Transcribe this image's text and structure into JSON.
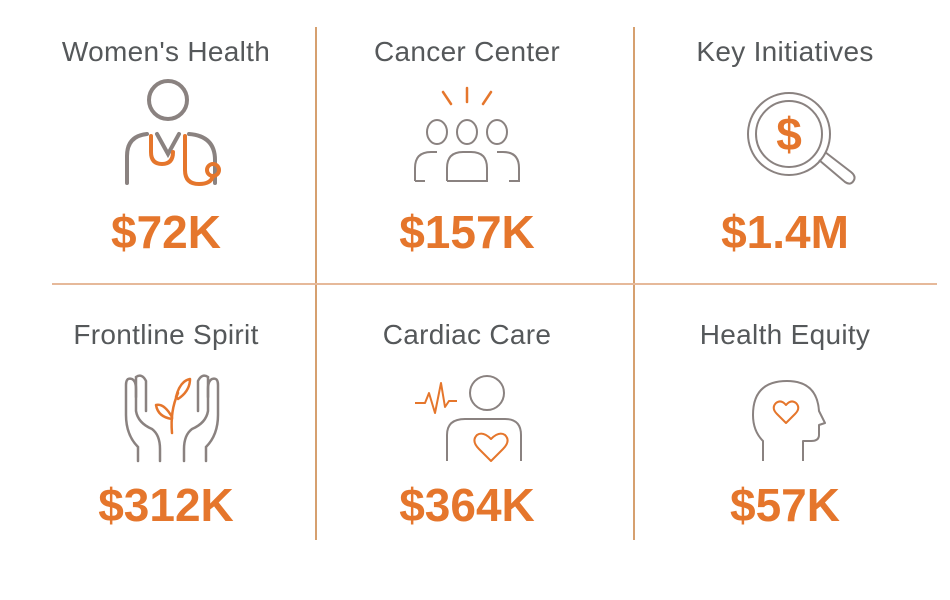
{
  "cells": [
    {
      "label": "Women's Health",
      "amount": "$72K",
      "icon": "stethoscope-person-icon"
    },
    {
      "label": "Cancer Center",
      "amount": "$157K",
      "icon": "group-people-icon"
    },
    {
      "label": "Key Initiatives",
      "amount": "$1.4M",
      "icon": "magnifier-dollar-icon"
    },
    {
      "label": "Frontline Spirit",
      "amount": "$312K",
      "icon": "hands-sprout-icon"
    },
    {
      "label": "Cardiac Care",
      "amount": "$364K",
      "icon": "person-heart-pulse-icon"
    },
    {
      "label": "Health Equity",
      "amount": "$57K",
      "icon": "head-heart-icon"
    }
  ],
  "colors": {
    "accent": "#e5762c",
    "text": "#55585a",
    "icon_gray": "#8a8280",
    "divider": "#d6a06f"
  }
}
